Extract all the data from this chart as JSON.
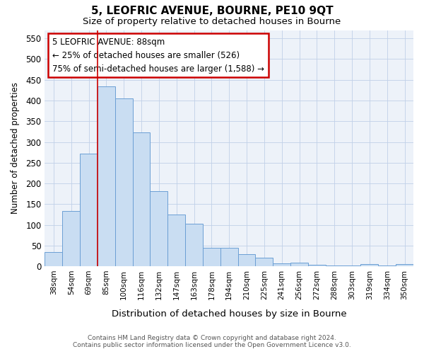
{
  "title": "5, LEOFRIC AVENUE, BOURNE, PE10 9QT",
  "subtitle": "Size of property relative to detached houses in Bourne",
  "xlabel": "Distribution of detached houses by size in Bourne",
  "ylabel": "Number of detached properties",
  "categories": [
    "38sqm",
    "54sqm",
    "69sqm",
    "85sqm",
    "100sqm",
    "116sqm",
    "132sqm",
    "147sqm",
    "163sqm",
    "178sqm",
    "194sqm",
    "210sqm",
    "225sqm",
    "241sqm",
    "256sqm",
    "272sqm",
    "288sqm",
    "303sqm",
    "319sqm",
    "334sqm",
    "350sqm"
  ],
  "values": [
    35,
    133,
    272,
    435,
    405,
    323,
    182,
    125,
    103,
    45,
    45,
    30,
    20,
    7,
    8,
    3,
    2,
    2,
    5,
    2,
    5
  ],
  "bar_color": "#c9ddf2",
  "bar_edge_color": "#6b9fd4",
  "vline_color": "#cc0000",
  "annotation_box_color": "#cc0000",
  "annotation_title": "5 LEOFRIC AVENUE: 88sqm",
  "annotation_line2": "← 25% of detached houses are smaller (526)",
  "annotation_line3": "75% of semi-detached houses are larger (1,588) →",
  "ylim": [
    0,
    570
  ],
  "yticks": [
    0,
    50,
    100,
    150,
    200,
    250,
    300,
    350,
    400,
    450,
    500,
    550
  ],
  "grid_color": "#c0d0e8",
  "bg_color": "#edf2f9",
  "footer_line1": "Contains HM Land Registry data © Crown copyright and database right 2024.",
  "footer_line2": "Contains public sector information licensed under the Open Government Licence v3.0."
}
